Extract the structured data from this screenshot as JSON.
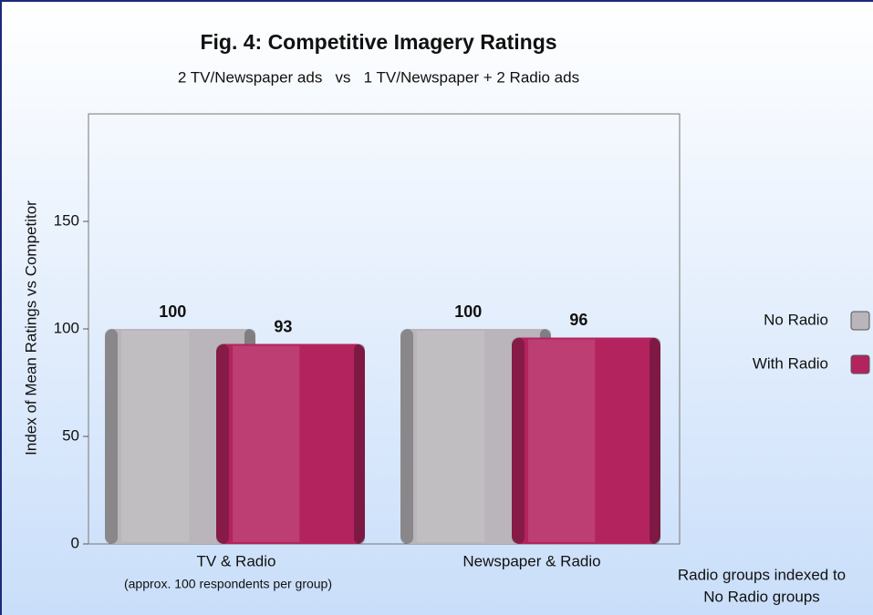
{
  "chart_data": {
    "type": "bar",
    "title": "Fig. 4: Competitive Imagery Ratings",
    "subtitle": "2 TV/Newspaper ads   vs   1 TV/Newspaper + 2 Radio ads",
    "y_label": "Index of Mean Ratings vs Competitor",
    "categories": [
      "TV & Radio",
      "Newspaper & Radio"
    ],
    "series": [
      {
        "name": "No Radio",
        "color": "#b9b5ba",
        "values": [
          100,
          100
        ]
      },
      {
        "name": "With Radio",
        "color": "#b3245f",
        "values": [
          93,
          96
        ]
      }
    ],
    "ylim": [
      0,
      200
    ],
    "yticks": [
      0,
      50,
      100,
      150
    ],
    "legend": "right",
    "note_left": "(approx. 100 respondents per group)",
    "note_right": [
      "Radio groups indexed to",
      "No Radio groups"
    ]
  }
}
